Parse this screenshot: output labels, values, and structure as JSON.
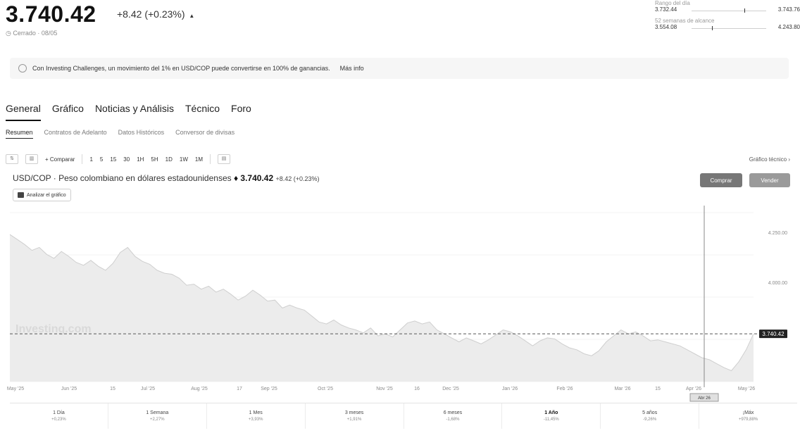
{
  "header": {
    "price": "3.740.42",
    "change": "+8.42 (+0.23%)",
    "change_arrow": "▲",
    "closed": "Cerrado · 08/05"
  },
  "ranges": [
    {
      "label": "Rango del día",
      "low": "3.732.44",
      "high": "3.743.76",
      "marker": 0.71
    },
    {
      "label": "52 semanas de alcance",
      "low": "3.554.08",
      "high": "4.243.80",
      "marker": 0.27
    }
  ],
  "banner": {
    "text": "Con Investing Challenges, un movimiento del 1% en USD/COP puede convertirse en 100% de ganancias.",
    "link": "Más info"
  },
  "tabs": [
    "General",
    "Gráfico",
    "Noticias y Análisis",
    "Técnico",
    "Foro"
  ],
  "active_tab": "General",
  "subtabs": [
    "Resumen",
    "Contratos de Adelanto",
    "Datos Históricos",
    "Conversor de divisas"
  ],
  "toolbar": {
    "compare": "+ Comparar",
    "intervals": [
      "1",
      "5",
      "15",
      "30",
      "1H",
      "5H",
      "1D",
      "1W",
      "1M"
    ],
    "chart_type": "Gráfico técnico ›"
  },
  "chart_title": {
    "pair": "USD/COP · Peso colombiano en dólares estadounidenses",
    "price": "♦ 3.740.42",
    "change": "+8.42 (+0.23%)"
  },
  "analyze_label": "Analizar el gráfico",
  "buttons": {
    "buy": "Comprar",
    "sell": "Vender"
  },
  "watermark": "Investing.com",
  "chart_data": {
    "type": "area",
    "title": "USD/COP",
    "x_labels": [
      "May '25",
      "Jun '25",
      "15",
      "Jul '25",
      "Aug '25",
      "17",
      "Sep '25",
      "Oct '25",
      "Nov '25",
      "16",
      "Dec '25",
      "Jan '26",
      "Feb '26",
      "Mar '26",
      "15",
      "Apr '26",
      "May '26"
    ],
    "y_labels": [
      "4.250.00",
      "4.000.00",
      "3.740.42"
    ],
    "ylim": [
      3500,
      4350
    ],
    "last_price": 3740.42,
    "hover_label": "Abr 26",
    "values": [
      4240,
      4215,
      4190,
      4160,
      4175,
      4140,
      4120,
      4155,
      4130,
      4100,
      4085,
      4110,
      4080,
      4060,
      4095,
      4150,
      4175,
      4130,
      4105,
      4090,
      4060,
      4045,
      4040,
      4020,
      3985,
      3990,
      3965,
      3980,
      3950,
      3965,
      3940,
      3910,
      3930,
      3960,
      3935,
      3905,
      3910,
      3870,
      3885,
      3870,
      3860,
      3830,
      3800,
      3790,
      3810,
      3785,
      3770,
      3760,
      3745,
      3770,
      3730,
      3740,
      3725,
      3760,
      3795,
      3805,
      3790,
      3800,
      3760,
      3740,
      3720,
      3700,
      3720,
      3705,
      3690,
      3710,
      3735,
      3760,
      3750,
      3730,
      3705,
      3680,
      3705,
      3720,
      3715,
      3690,
      3670,
      3660,
      3640,
      3630,
      3655,
      3700,
      3730,
      3760,
      3740,
      3750,
      3730,
      3705,
      3710,
      3700,
      3690,
      3680,
      3660,
      3640,
      3620,
      3610,
      3590,
      3570,
      3555,
      3600,
      3660,
      3740
    ]
  },
  "periods": [
    {
      "label": "1 Día",
      "value": "+0,23%"
    },
    {
      "label": "1 Semana",
      "value": "+2,27%"
    },
    {
      "label": "1 Mes",
      "value": "+3,93%"
    },
    {
      "label": "3 meses",
      "value": "+1,91%"
    },
    {
      "label": "6 meses",
      "value": "-1,68%"
    },
    {
      "label": "1 Año",
      "value": "-11,45%"
    },
    {
      "label": "5 años",
      "value": "-9,26%"
    },
    {
      "label": "¡Máx",
      "value": "+979,88%"
    }
  ],
  "active_period": "1 Año"
}
